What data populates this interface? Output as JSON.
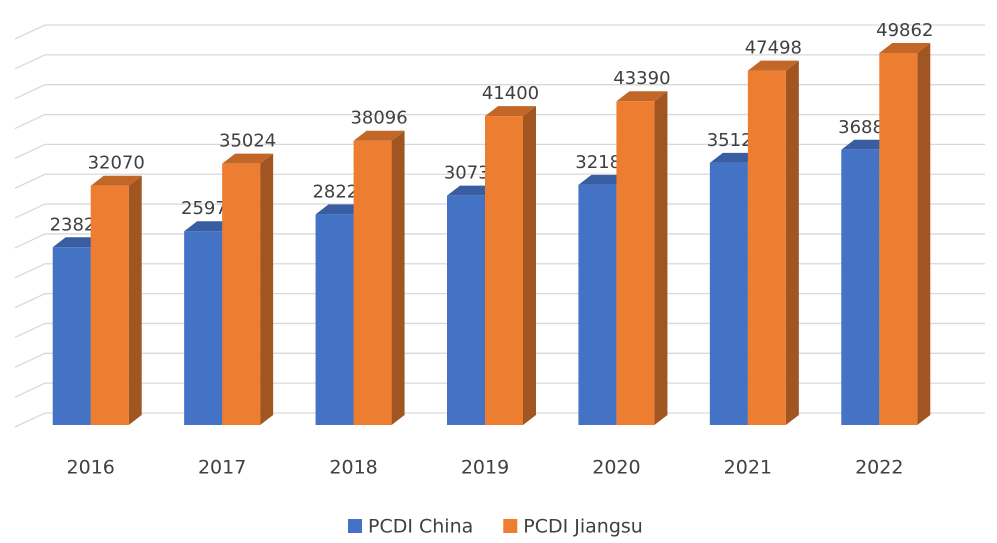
{
  "chart_data": {
    "type": "bar3d",
    "categories": [
      "2016",
      "2017",
      "2018",
      "2019",
      "2020",
      "2021",
      "2022"
    ],
    "series": [
      {
        "name": "PCDI China",
        "color": "#4472c4",
        "values": [
          23821,
          25974,
          28228,
          30733,
          32189,
          35128,
          36883
        ]
      },
      {
        "name": "PCDI Jiangsu",
        "color": "#ed7d31",
        "values": [
          32070,
          35024,
          38096,
          41400,
          43390,
          47498,
          49862
        ]
      }
    ],
    "ylim": [
      0,
      52000
    ],
    "yticks": [
      0,
      4000,
      8000,
      12000,
      16000,
      20000,
      24000,
      28000,
      32000,
      36000,
      40000,
      44000,
      48000,
      52000
    ],
    "grid": true,
    "ytick_labels_shown": false,
    "legend": "bottom",
    "data_labels": true
  }
}
